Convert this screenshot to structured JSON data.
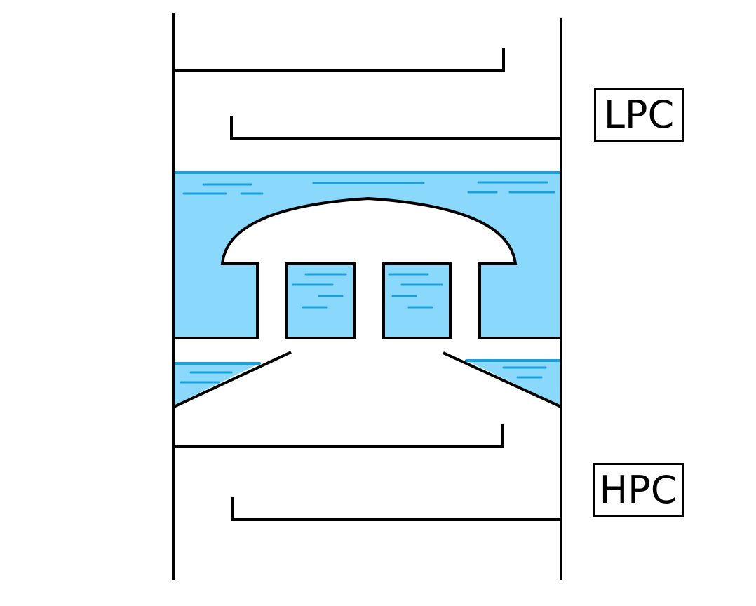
{
  "labels": {
    "lpc": "LPC",
    "hpc": "HPC"
  },
  "colors": {
    "liquid_fill": "#8ad8fb",
    "liquid_line": "#1aa0dc",
    "stroke": "#000000",
    "background": "#ffffff"
  }
}
